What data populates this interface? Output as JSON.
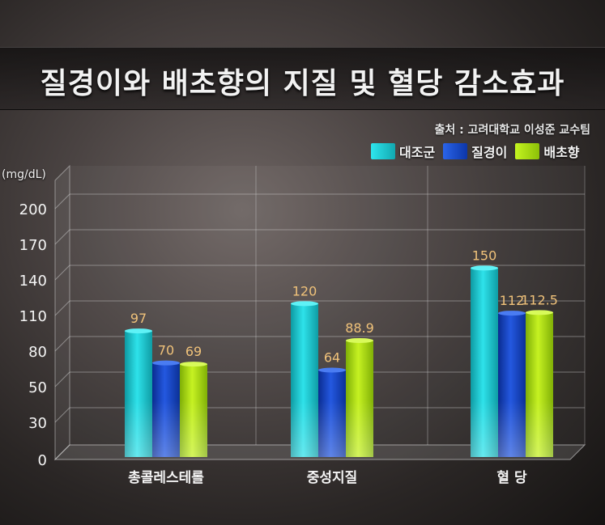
{
  "title": "질경이와 배초향의 지질 및 혈당 감소효과",
  "source": "출처 : 고려대학교 이성준 교수팀",
  "unit_label": "(mg/dL)",
  "colors": {
    "control": "#19c0c8",
    "plantain": "#1346c8",
    "agastache": "#a6dc0e"
  },
  "chart_data": {
    "type": "bar",
    "title": "질경이와 배초향의 지질 및 혈당 감소효과",
    "ylabel": "(mg/dL)",
    "xlabel": "",
    "categories": [
      "총콜레스테롤",
      "중성지질",
      "혈 당"
    ],
    "yticks": [
      0,
      30,
      50,
      80,
      110,
      140,
      170,
      200
    ],
    "series": [
      {
        "name": "대조군",
        "values": [
          97,
          120,
          150
        ],
        "labels": [
          "97",
          "120",
          "150"
        ]
      },
      {
        "name": "질경이",
        "values": [
          70,
          64,
          112
        ],
        "labels": [
          "70",
          "64",
          "112"
        ]
      },
      {
        "name": "배초향",
        "values": [
          69,
          88.9,
          112.5
        ],
        "labels": [
          "69",
          "88.9",
          "112.5"
        ]
      }
    ],
    "grid": true,
    "legend_position": "top-right"
  }
}
